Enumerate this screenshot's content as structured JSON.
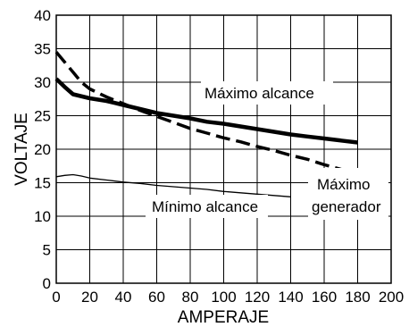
{
  "chart_data": {
    "type": "line",
    "xlabel": "AMPERAJE",
    "ylabel": "VOLTAJE",
    "xlim": [
      0,
      200
    ],
    "ylim": [
      0,
      40
    ],
    "x_ticks": [
      0,
      20,
      40,
      60,
      80,
      100,
      120,
      140,
      160,
      180,
      200
    ],
    "y_ticks": [
      0,
      5,
      10,
      15,
      20,
      25,
      30,
      35,
      40
    ],
    "grid": true,
    "series": [
      {
        "name": "Máximo alcance",
        "style": "thick-solid",
        "color": "#000000",
        "x": [
          0,
          5,
          10,
          20,
          30,
          40,
          50,
          60,
          70,
          80,
          90,
          100,
          110,
          120,
          130,
          140,
          150,
          160,
          170,
          180
        ],
        "y": [
          30.5,
          29.3,
          28.2,
          27.6,
          27.2,
          26.6,
          26.0,
          25.4,
          25.0,
          24.6,
          24.1,
          23.8,
          23.4,
          23.0,
          22.6,
          22.2,
          21.9,
          21.6,
          21.3,
          21.0
        ]
      },
      {
        "name": "Máximo generador",
        "style": "thick-dashed",
        "color": "#000000",
        "x": [
          0,
          5,
          10,
          15,
          20,
          30,
          40,
          50,
          60,
          70,
          80,
          90,
          100,
          110,
          120,
          130,
          140,
          150,
          160,
          170,
          180
        ],
        "y": [
          34.5,
          33.0,
          31.5,
          30.0,
          29.0,
          27.8,
          26.8,
          25.8,
          24.9,
          24.0,
          23.1,
          22.4,
          21.7,
          21.1,
          20.4,
          19.8,
          19.1,
          18.5,
          17.7,
          17.0,
          16.2
        ]
      },
      {
        "name": "Mínimo alcance",
        "style": "thin-solid",
        "color": "#000000",
        "x": [
          0,
          5,
          10,
          15,
          20,
          30,
          40,
          50,
          60,
          70,
          80,
          90,
          100,
          110,
          120,
          130,
          140
        ],
        "y": [
          15.9,
          16.1,
          16.2,
          16.0,
          15.7,
          15.4,
          15.1,
          14.9,
          14.6,
          14.4,
          14.2,
          14.0,
          13.7,
          13.5,
          13.3,
          13.1,
          12.9
        ]
      }
    ],
    "labels": {
      "max_alcance": "Máximo alcance",
      "min_alcance": "Mínimo alcance",
      "max_generador_line1": "Máximo",
      "max_generador_line2": "generador"
    }
  }
}
